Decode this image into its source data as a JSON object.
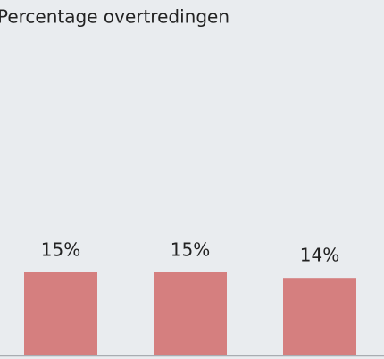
{
  "chart_data": {
    "type": "bar",
    "title": "Percentage overtredingen",
    "values": [
      15,
      15,
      14
    ],
    "value_labels": [
      "15%",
      "15%",
      "14%"
    ],
    "color": "#d57f7f"
  }
}
